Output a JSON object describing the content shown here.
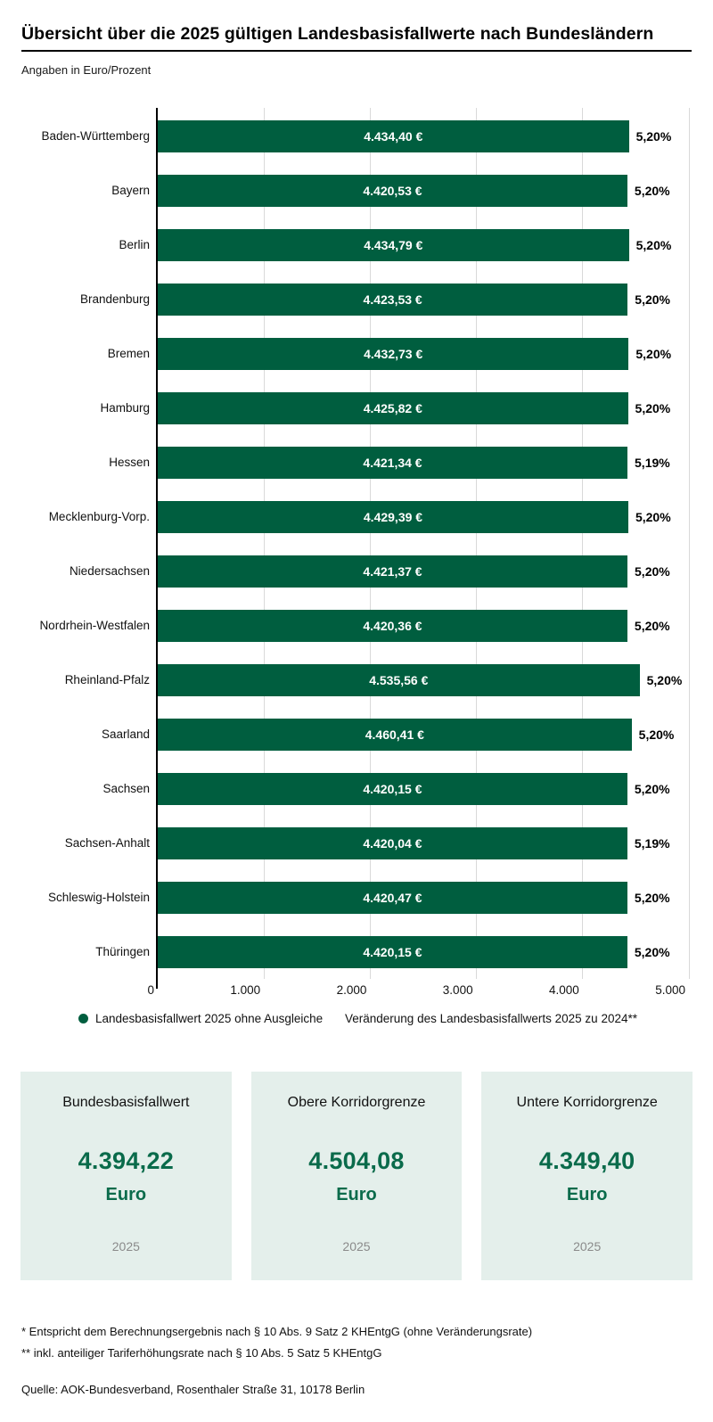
{
  "header": {
    "title": "Übersicht über die 2025 gültigen Landesbasisfallwerte nach Bundesländern",
    "subtitle": "Angaben in Euro/Prozent"
  },
  "chart_data": {
    "type": "bar",
    "orientation": "horizontal",
    "title": "Übersicht über die 2025 gültigen Landesbasisfallwerte nach Bundesländern",
    "categories": [
      "Baden-Württemberg",
      "Bayern",
      "Berlin",
      "Brandenburg",
      "Bremen",
      "Hamburg",
      "Hessen",
      "Mecklenburg-Vorp.",
      "Niedersachsen",
      "Nordrhein-Westfalen",
      "Rheinland-Pfalz",
      "Saarland",
      "Sachsen",
      "Sachsen-Anhalt",
      "Schleswig-Holstein",
      "Thüringen"
    ],
    "series": [
      {
        "name": "Landesbasisfallwert 2025 ohne Ausgleiche",
        "unit": "EUR",
        "values": [
          4434.4,
          4420.53,
          4434.79,
          4423.53,
          4432.73,
          4425.82,
          4421.34,
          4429.39,
          4421.37,
          4420.36,
          4535.56,
          4460.41,
          4420.15,
          4420.04,
          4420.47,
          4420.15
        ],
        "labels": [
          "4.434,40 €",
          "4.420,53 €",
          "4.434,79 €",
          "4.423,53 €",
          "4.432,73 €",
          "4.425,82 €",
          "4.421,34 €",
          "4.429,39 €",
          "4.421,37 €",
          "4.420,36 €",
          "4.535,56 €",
          "4.460,41 €",
          "4.420,15 €",
          "4.420,04 €",
          "4.420,47 €",
          "4.420,15 €"
        ]
      },
      {
        "name": "Veränderung des Landesbasisfallwerts 2025 zu 2024**",
        "unit": "%",
        "values": [
          5.2,
          5.2,
          5.2,
          5.2,
          5.2,
          5.2,
          5.19,
          5.2,
          5.2,
          5.2,
          5.2,
          5.2,
          5.2,
          5.19,
          5.2,
          5.2
        ],
        "labels": [
          "5,20%",
          "5,20%",
          "5,20%",
          "5,20%",
          "5,20%",
          "5,20%",
          "5,19%",
          "5,20%",
          "5,20%",
          "5,20%",
          "5,20%",
          "5,20%",
          "5,20%",
          "5,19%",
          "5,20%",
          "5,20%"
        ]
      }
    ],
    "xlim": [
      0,
      5000
    ],
    "xticks": [
      0,
      1000,
      2000,
      3000,
      4000,
      5000
    ],
    "xtick_labels": [
      "0",
      "1.000",
      "2.000",
      "3.000",
      "4.000",
      "5.000"
    ],
    "grid": true,
    "legend_position": "bottom",
    "bar_color": "#005e3f"
  },
  "legend": {
    "items": [
      {
        "label": "Landesbasisfallwert 2025 ohne Ausgleiche",
        "marker": "dot"
      },
      {
        "label": "Veränderung des Landesbasisfallwerts 2025 zu 2024**",
        "marker": "none"
      }
    ]
  },
  "cards": [
    {
      "title": "Bundesbasisfallwert",
      "value": "4.394,22",
      "unit": "Euro",
      "year": "2025"
    },
    {
      "title": "Obere Korridorgrenze",
      "value": "4.504,08",
      "unit": "Euro",
      "year": "2025"
    },
    {
      "title": "Untere Korridorgrenze",
      "value": "4.349,40",
      "unit": "Euro",
      "year": "2025"
    }
  ],
  "footnotes": [
    "* Entspricht dem Berechnungsergebnis nach § 10 Abs. 9 Satz 2 KHEntgG (ohne Veränderungsrate)",
    "** inkl. anteiliger Tariferhöhungsrate nach § 10 Abs. 5 Satz 5 KHEntgG"
  ],
  "source": "Quelle: AOK-Bundesverband, Rosenthaler Straße 31, 10178 Berlin",
  "colors": {
    "bar_green": "#005e3f",
    "value_green": "#0a6b4b",
    "card_bg": "#e4efeb",
    "grid": "#d9d9d9",
    "year_gray": "#8a8a8a"
  }
}
